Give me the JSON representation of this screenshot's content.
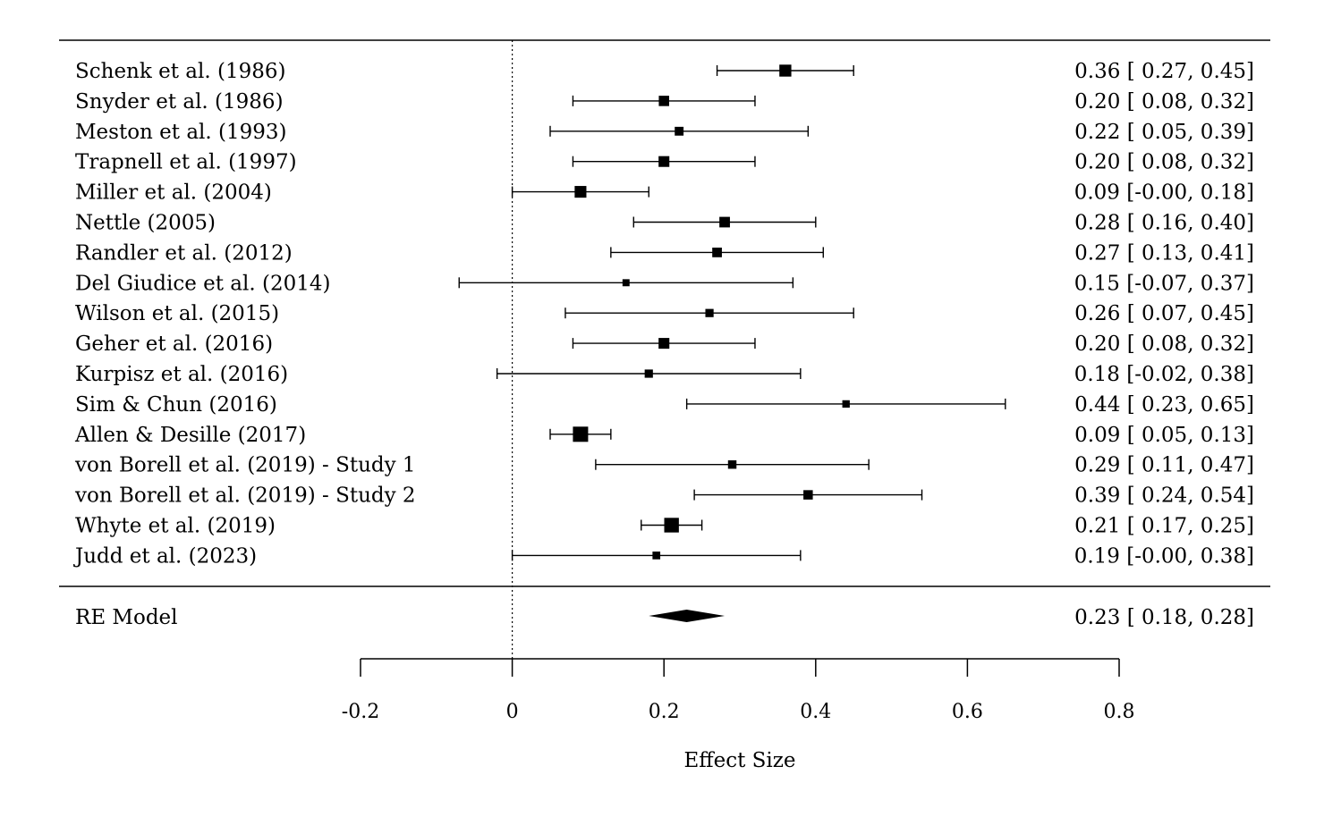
{
  "chart_data": {
    "type": "forest",
    "xlabel": "Effect Size",
    "xlim": [
      -0.2,
      0.8
    ],
    "ticks": [
      -0.2,
      0,
      0.2,
      0.4,
      0.6,
      0.8
    ],
    "tick_labels": [
      "-0.2",
      "0",
      "0.2",
      "0.4",
      "0.6",
      "0.8"
    ],
    "reference_line": 0,
    "studies": [
      {
        "label": "Schenk et al. (1986)",
        "estimate": 0.36,
        "lower": 0.27,
        "upper": 0.45,
        "ci_text": "0.36 [ 0.27, 0.45]",
        "weight": 0.72
      },
      {
        "label": "Snyder et al. (1986)",
        "estimate": 0.2,
        "lower": 0.08,
        "upper": 0.32,
        "ci_text": "0.20 [ 0.08, 0.32]",
        "weight": 0.58
      },
      {
        "label": "Meston et al. (1993)",
        "estimate": 0.22,
        "lower": 0.05,
        "upper": 0.39,
        "ci_text": "0.22 [ 0.05, 0.39]",
        "weight": 0.45
      },
      {
        "label": "Trapnell et al. (1997)",
        "estimate": 0.2,
        "lower": 0.08,
        "upper": 0.32,
        "ci_text": "0.20 [ 0.08, 0.32]",
        "weight": 0.62
      },
      {
        "label": "Miller et al. (2004)",
        "estimate": 0.09,
        "lower": -0.0,
        "upper": 0.18,
        "ci_text": "0.09 [-0.00, 0.18]",
        "weight": 0.7
      },
      {
        "label": "Nettle (2005)",
        "estimate": 0.28,
        "lower": 0.16,
        "upper": 0.4,
        "ci_text": "0.28 [ 0.16, 0.40]",
        "weight": 0.6
      },
      {
        "label": "Randler et al. (2012)",
        "estimate": 0.27,
        "lower": 0.13,
        "upper": 0.41,
        "ci_text": "0.27 [ 0.13, 0.41]",
        "weight": 0.52
      },
      {
        "label": "Del Giudice et al. (2014)",
        "estimate": 0.15,
        "lower": -0.07,
        "upper": 0.37,
        "ci_text": "0.15 [-0.07, 0.37]",
        "weight": 0.3
      },
      {
        "label": "Wilson et al. (2015)",
        "estimate": 0.26,
        "lower": 0.07,
        "upper": 0.45,
        "ci_text": "0.26 [ 0.07, 0.45]",
        "weight": 0.4
      },
      {
        "label": "Geher et al. (2016)",
        "estimate": 0.2,
        "lower": 0.08,
        "upper": 0.32,
        "ci_text": "0.20 [ 0.08, 0.32]",
        "weight": 0.62
      },
      {
        "label": "Kurpisz et al. (2016)",
        "estimate": 0.18,
        "lower": -0.02,
        "upper": 0.38,
        "ci_text": "0.18 [-0.02, 0.38]",
        "weight": 0.4
      },
      {
        "label": "Sim & Chun (2016)",
        "estimate": 0.44,
        "lower": 0.23,
        "upper": 0.65,
        "ci_text": "0.44 [ 0.23, 0.65]",
        "weight": 0.33
      },
      {
        "label": "Allen & Desille (2017)",
        "estimate": 0.09,
        "lower": 0.05,
        "upper": 0.13,
        "ci_text": "0.09 [ 0.05, 0.13]",
        "weight": 1.0
      },
      {
        "label": "von Borell et al. (2019) - Study 1",
        "estimate": 0.29,
        "lower": 0.11,
        "upper": 0.47,
        "ci_text": "0.29 [ 0.11, 0.47]",
        "weight": 0.42
      },
      {
        "label": "von Borell et al. (2019) - Study 2",
        "estimate": 0.39,
        "lower": 0.24,
        "upper": 0.54,
        "ci_text": "0.39 [ 0.24, 0.54]",
        "weight": 0.5
      },
      {
        "label": "Whyte et al. (2019)",
        "estimate": 0.21,
        "lower": 0.17,
        "upper": 0.25,
        "ci_text": "0.21 [ 0.17, 0.25]",
        "weight": 0.95
      },
      {
        "label": "Judd et al. (2023)",
        "estimate": 0.19,
        "lower": -0.0,
        "upper": 0.38,
        "ci_text": "0.19 [-0.00, 0.38]",
        "weight": 0.36
      }
    ],
    "summary": {
      "label": "RE Model",
      "estimate": 0.23,
      "lower": 0.18,
      "upper": 0.28,
      "ci_text": "0.23 [ 0.18, 0.28]"
    }
  }
}
